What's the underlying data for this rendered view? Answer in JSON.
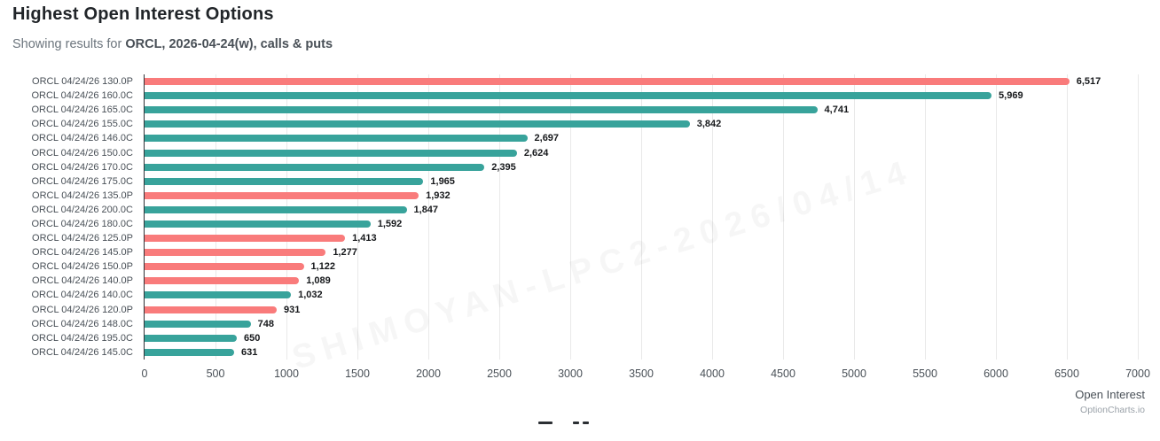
{
  "header": {
    "title": "Highest Open Interest Options",
    "subtitle_prefix": "Showing results for ",
    "subtitle_query": "ORCL, 2026-04-24(w), calls & puts"
  },
  "chart_data": {
    "type": "bar",
    "orientation": "horizontal",
    "title": "Highest Open Interest Options",
    "xlabel": "Open Interest",
    "ylabel": "",
    "xlim": [
      0,
      7000
    ],
    "x_ticks": [
      0,
      500,
      1000,
      1500,
      2000,
      2500,
      3000,
      3500,
      4000,
      4500,
      5000,
      5500,
      6000,
      6500,
      7000
    ],
    "grid": true,
    "legend": false,
    "call_color": "#38a39b",
    "put_color": "#f97b7b",
    "categories": [
      "ORCL 04/24/26 130.0P",
      "ORCL 04/24/26 160.0C",
      "ORCL 04/24/26 165.0C",
      "ORCL 04/24/26 155.0C",
      "ORCL 04/24/26 146.0C",
      "ORCL 04/24/26 150.0C",
      "ORCL 04/24/26 170.0C",
      "ORCL 04/24/26 175.0C",
      "ORCL 04/24/26 135.0P",
      "ORCL 04/24/26 200.0C",
      "ORCL 04/24/26 180.0C",
      "ORCL 04/24/26 125.0P",
      "ORCL 04/24/26 145.0P",
      "ORCL 04/24/26 150.0P",
      "ORCL 04/24/26 140.0P",
      "ORCL 04/24/26 140.0C",
      "ORCL 04/24/26 120.0P",
      "ORCL 04/24/26 148.0C",
      "ORCL 04/24/26 195.0C",
      "ORCL 04/24/26 145.0C"
    ],
    "values": [
      6517,
      5969,
      4741,
      3842,
      2697,
      2624,
      2395,
      1965,
      1932,
      1847,
      1592,
      1413,
      1277,
      1122,
      1089,
      1032,
      931,
      748,
      650,
      631
    ],
    "values_display": [
      "6,517",
      "5,969",
      "4,741",
      "3,842",
      "2,697",
      "2,624",
      "2,395",
      "1,965",
      "1,932",
      "1,847",
      "1,592",
      "1,413",
      "1,277",
      "1,122",
      "1,089",
      "1,032",
      "931",
      "748",
      "650",
      "631"
    ],
    "option_types": [
      "put",
      "call",
      "call",
      "call",
      "call",
      "call",
      "call",
      "call",
      "put",
      "call",
      "call",
      "put",
      "put",
      "put",
      "put",
      "call",
      "put",
      "call",
      "call",
      "call"
    ]
  },
  "watermark": "SHIMOYAN-LPC2-2026/04/14",
  "footer": {
    "branding": "OptionCharts.io"
  }
}
